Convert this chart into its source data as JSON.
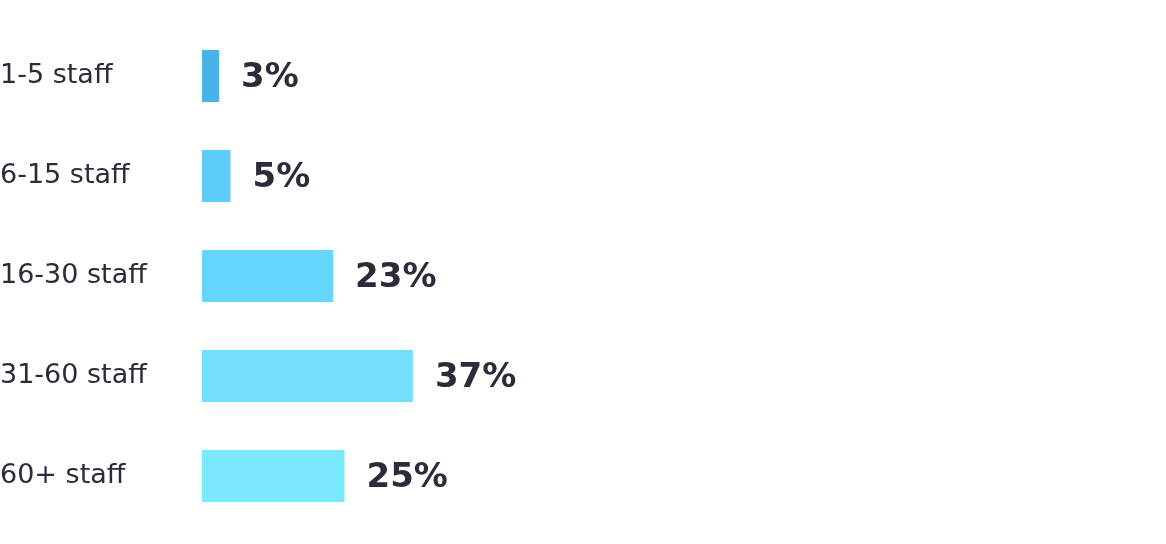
{
  "chart_data": {
    "type": "bar",
    "orientation": "horizontal",
    "categories": [
      "1-5 staff",
      "6-15 staff",
      "16-30 staff",
      "31-60 staff",
      "60+ staff"
    ],
    "values": [
      3,
      5,
      23,
      37,
      25
    ],
    "colors": [
      "#45b3e8",
      "#5ccbf8",
      "#66d5fb",
      "#72e0fc",
      "#7ae9fd"
    ],
    "value_labels": [
      "3%",
      "5%",
      "23%",
      "37%",
      "25%"
    ],
    "legend": false
  }
}
